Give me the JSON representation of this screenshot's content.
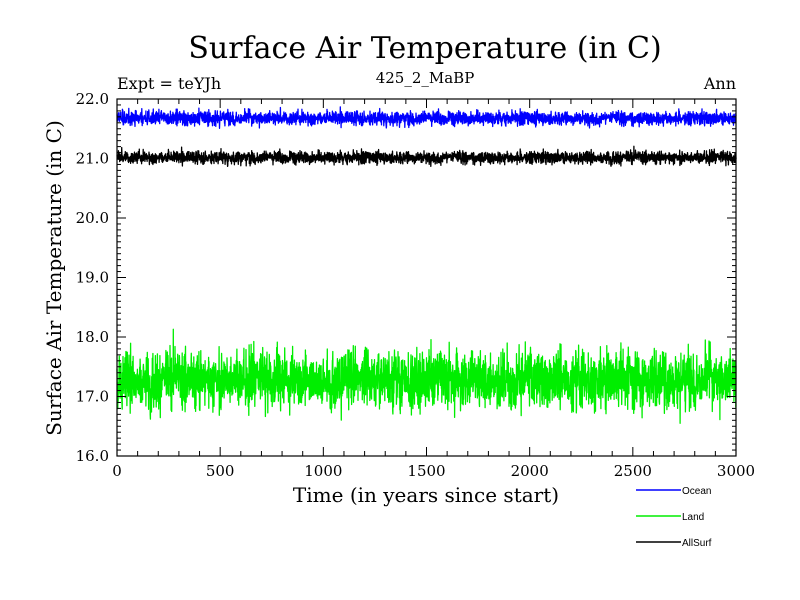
{
  "chart_data": {
    "type": "line",
    "title": "Surface Air Temperature (in C)",
    "subtitle_left": "Expt = teYJh",
    "subtitle_center": "425_2_MaBP",
    "subtitle_right": "Ann",
    "xlabel": "Time (in years since start)",
    "ylabel": "Surface Air Temperature (in C)",
    "xlim": [
      0,
      3000
    ],
    "ylim": [
      16.0,
      22.0
    ],
    "xticks": [
      0,
      500,
      1000,
      1500,
      2000,
      2500,
      3000
    ],
    "xtick_labels": [
      "0",
      "500",
      "1000",
      "1500",
      "2000",
      "2500",
      "3000"
    ],
    "yticks": [
      16.0,
      17.0,
      18.0,
      19.0,
      20.0,
      21.0,
      22.0
    ],
    "ytick_labels": [
      "16.0",
      "17.0",
      "18.0",
      "19.0",
      "20.0",
      "21.0",
      "22.0"
    ],
    "grid": false,
    "legend_position": "bottom-right",
    "series": [
      {
        "name": "Ocean",
        "color": "#0000ff",
        "mean": 21.68,
        "amplitude": 0.11,
        "min": 21.45,
        "max": 21.92
      },
      {
        "name": "Land",
        "color": "#00ee00",
        "mean": 17.3,
        "amplitude": 0.45,
        "min": 16.55,
        "max": 18.2
      },
      {
        "name": "AllSurf",
        "color": "#000000",
        "mean": 21.02,
        "amplitude": 0.1,
        "min": 20.78,
        "max": 21.25
      }
    ],
    "n_points": 3000
  }
}
